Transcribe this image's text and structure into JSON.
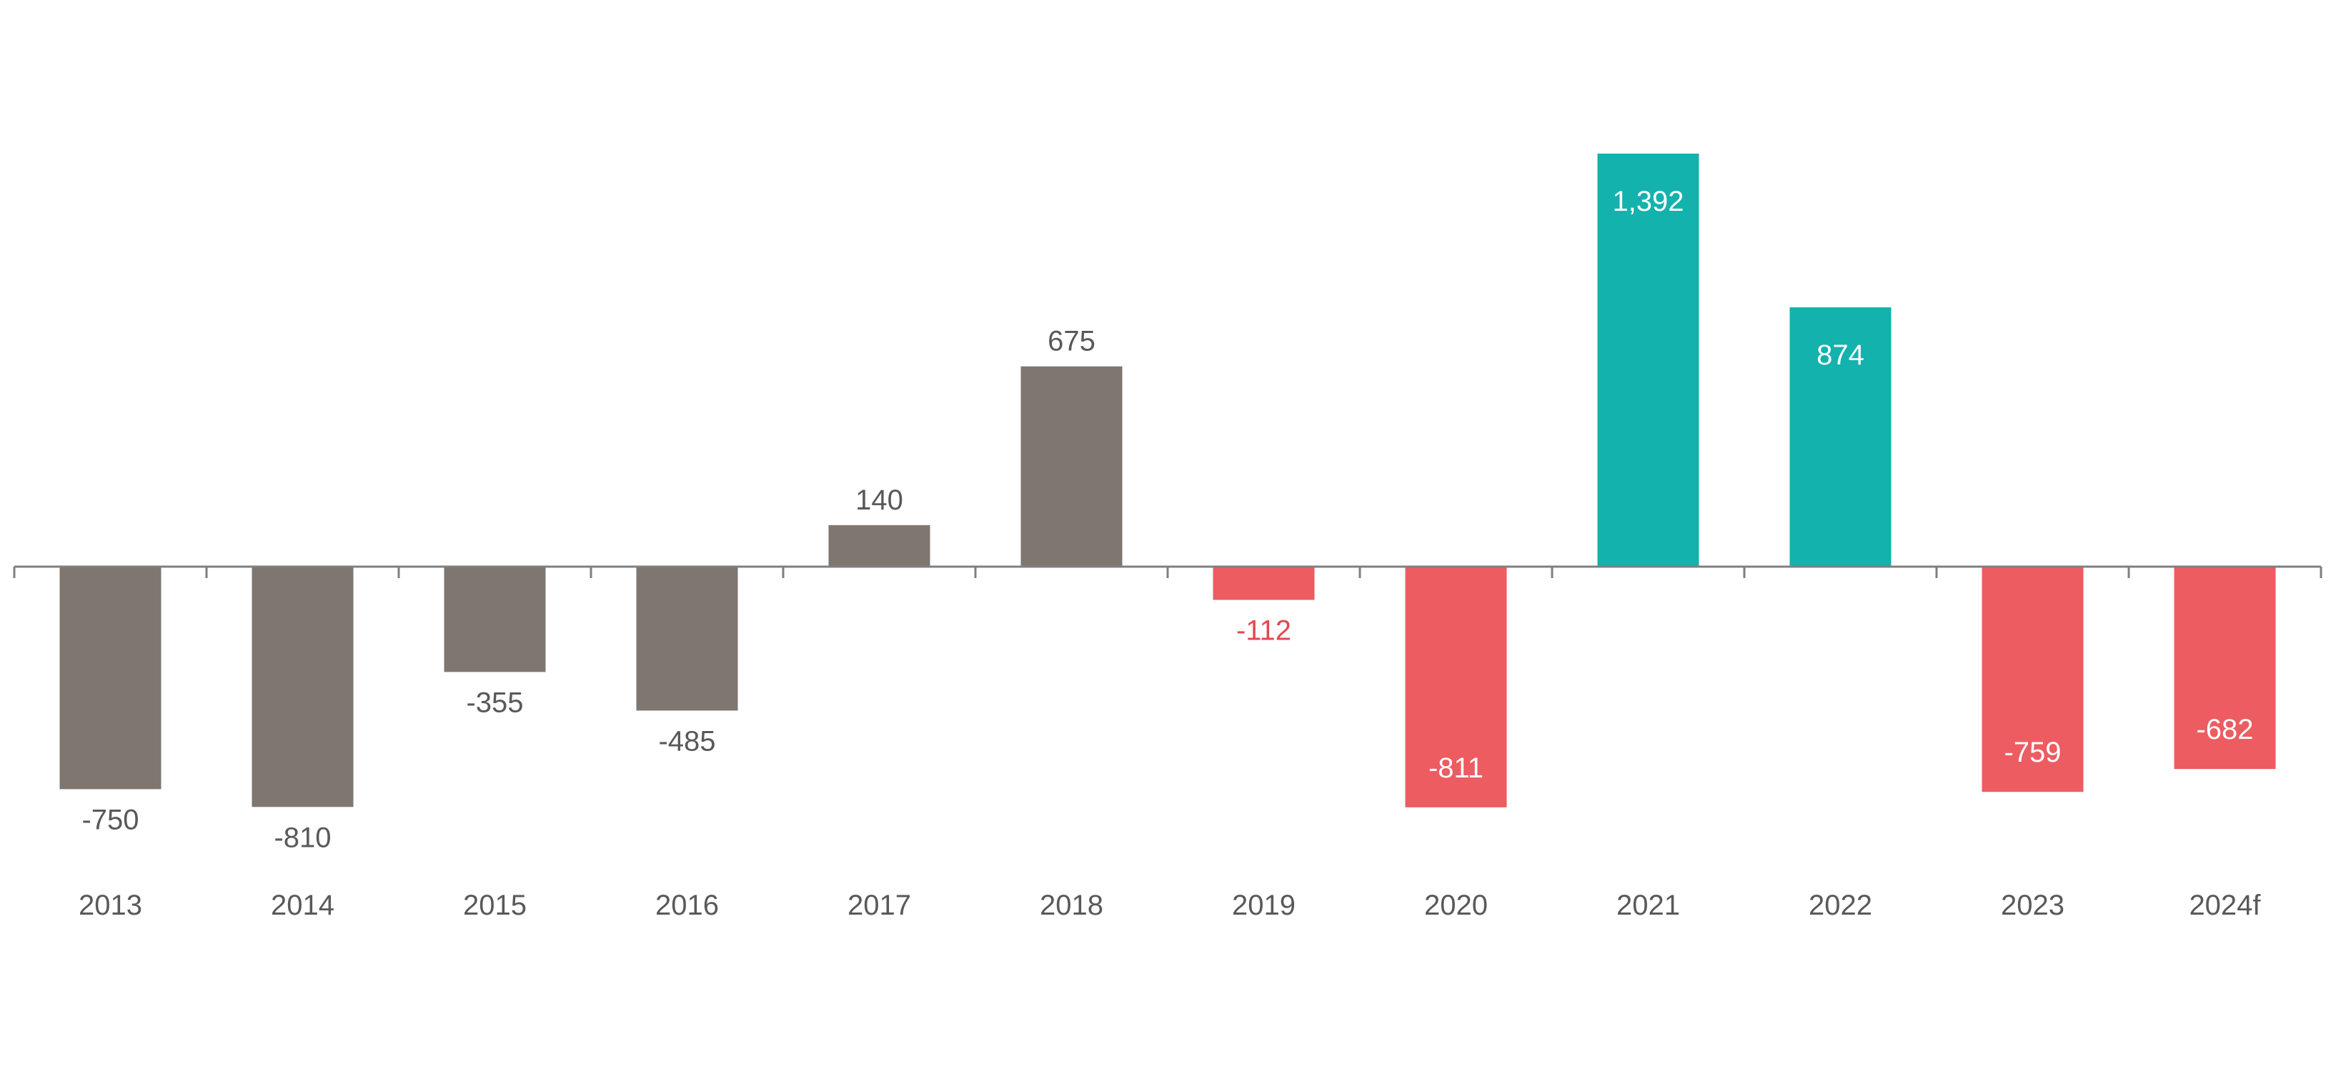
{
  "chart_data": {
    "type": "bar",
    "categories": [
      "2013",
      "2014",
      "2015",
      "2016",
      "2017",
      "2018",
      "2019",
      "2020",
      "2021",
      "2022",
      "2023",
      "2024f"
    ],
    "values": [
      -750,
      -810,
      -355,
      -485,
      140,
      675,
      -112,
      -811,
      1392,
      874,
      -759,
      -682
    ],
    "value_labels": [
      "-750",
      "-810",
      "-355",
      "-485",
      "140",
      "675",
      "-112",
      "-811",
      "1,392",
      "874",
      "-759",
      "-682"
    ],
    "bar_colors": [
      "#7f7670",
      "#7f7670",
      "#7f7670",
      "#7f7670",
      "#7f7670",
      "#7f7670",
      "#ec5c61",
      "#ec5c61",
      "#13b2ad",
      "#13b2ad",
      "#ec5c61",
      "#ec5c61"
    ],
    "label_colors": [
      "#595959",
      "#595959",
      "#595959",
      "#595959",
      "#595959",
      "#595959",
      "#e5484d",
      "#ffffff",
      "#ffffff",
      "#ffffff",
      "#ffffff",
      "#ffffff"
    ],
    "label_position": [
      "outside",
      "outside",
      "outside",
      "outside",
      "outside",
      "outside",
      "outside",
      "inside",
      "inside",
      "inside",
      "inside",
      "inside"
    ],
    "title": "",
    "xlabel": "",
    "ylabel": "",
    "ylim": [
      -1100,
      1500
    ],
    "grid": false,
    "legend": "none",
    "axis_color": "#7f7f7f",
    "tick_label_color": "#595959"
  }
}
